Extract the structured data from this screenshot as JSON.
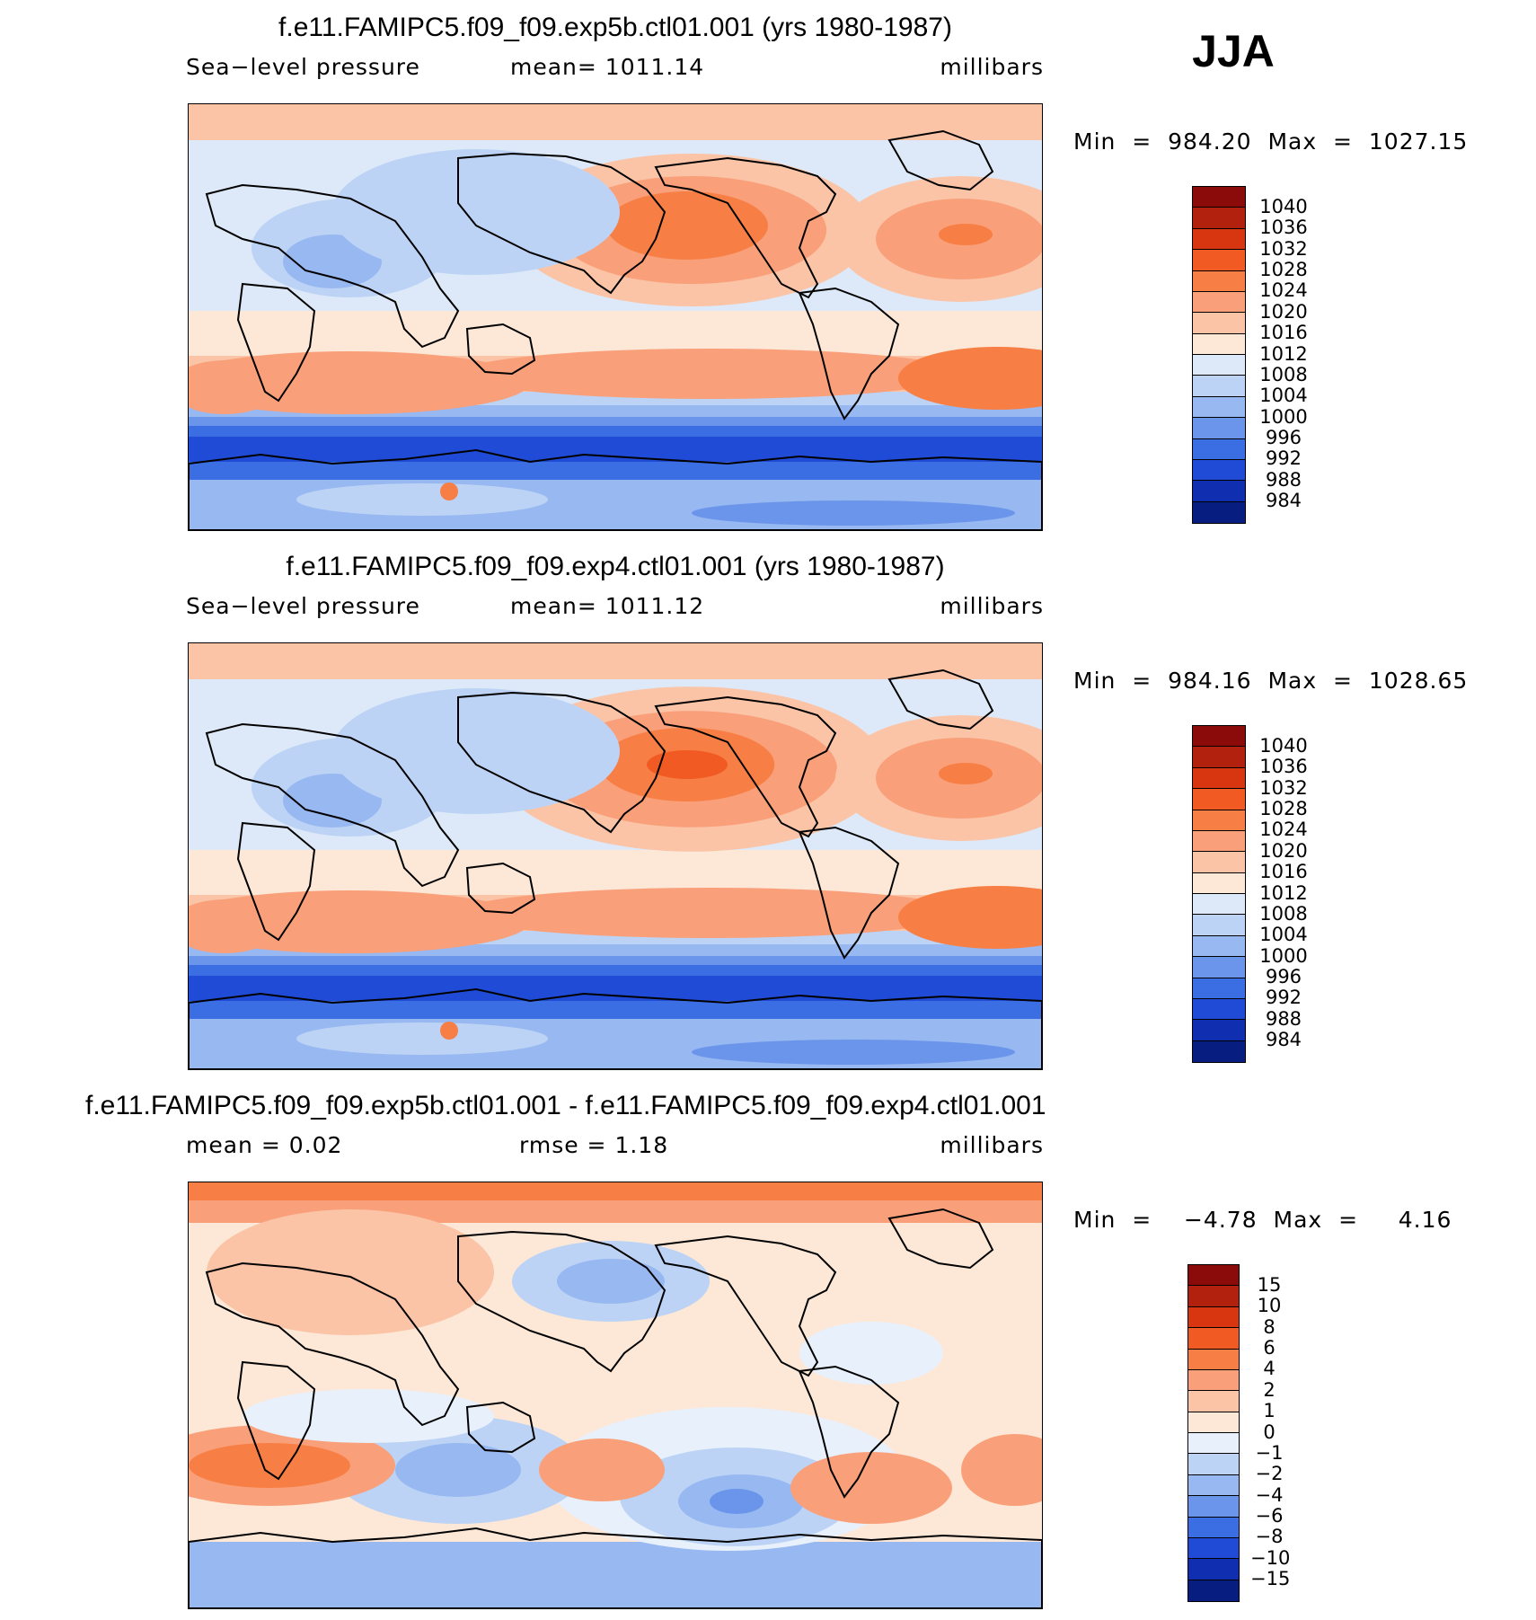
{
  "season": "JJA",
  "panels": [
    {
      "title": "f.e11.FAMIPC5.f09_f09.exp5b.ctl01.001 (yrs 1980-1987)",
      "field": "Sea−level pressure",
      "stat": "mean=  1011.14",
      "units": "millibars",
      "minmax": "Min  =  984.20  Max  =  1027.15"
    },
    {
      "title": "f.e11.FAMIPC5.f09_f09.exp4.ctl01.001 (yrs 1980-1987)",
      "field": "Sea−level pressure",
      "stat": "mean=  1011.12",
      "units": "millibars",
      "minmax": "Min  =  984.16  Max  =  1028.65"
    },
    {
      "title": "f.e11.FAMIPC5.f09_f09.exp5b.ctl01.001 - f.e11.FAMIPC5.f09_f09.exp4.ctl01.001",
      "field": "mean  =     0.02",
      "stat": "rmse  =     1.18",
      "units": "millibars",
      "minmax": "Min  =    −4.78  Max  =     4.16"
    }
  ],
  "chart_data": [
    {
      "type": "heatmap",
      "title": "f.e11.FAMIPC5.f09_f09.exp5b.ctl01.001 (yrs 1980-1987)",
      "variable": "Sea−level pressure",
      "units": "millibars",
      "mean": 1011.14,
      "min": 984.2,
      "max": 1027.15,
      "colorbar_levels": [
        "1040",
        "1036",
        "1032",
        "1028",
        "1024",
        "1020",
        "1016",
        "1012",
        "1008",
        "1004",
        "1000",
        "996",
        "992",
        "988",
        "984"
      ],
      "colorbar_colors": [
        "#8b0b0b",
        "#b2200e",
        "#d83511",
        "#f15a22",
        "#f77f45",
        "#f9a07a",
        "#fbc4a6",
        "#fde8d8",
        "#dde9f8",
        "#bcd3f5",
        "#97b8f1",
        "#6a95ea",
        "#3c6ee3",
        "#1f4bd6",
        "#0f2fb0",
        "#071d80"
      ]
    },
    {
      "type": "heatmap",
      "title": "f.e11.FAMIPC5.f09_f09.exp4.ctl01.001 (yrs 1980-1987)",
      "variable": "Sea−level pressure",
      "units": "millibars",
      "mean": 1011.12,
      "min": 984.16,
      "max": 1028.65,
      "colorbar_levels": [
        "1040",
        "1036",
        "1032",
        "1028",
        "1024",
        "1020",
        "1016",
        "1012",
        "1008",
        "1004",
        "1000",
        "996",
        "992",
        "988",
        "984"
      ],
      "colorbar_colors": [
        "#8b0b0b",
        "#b2200e",
        "#d83511",
        "#f15a22",
        "#f77f45",
        "#f9a07a",
        "#fbc4a6",
        "#fde8d8",
        "#dde9f8",
        "#bcd3f5",
        "#97b8f1",
        "#6a95ea",
        "#3c6ee3",
        "#1f4bd6",
        "#0f2fb0",
        "#071d80"
      ]
    },
    {
      "type": "heatmap",
      "title": "f.e11.FAMIPC5.f09_f09.exp5b.ctl01.001 - f.e11.FAMIPC5.f09_f09.exp4.ctl01.001",
      "units": "millibars",
      "mean": 0.02,
      "rmse": 1.18,
      "min": -4.78,
      "max": 4.16,
      "colorbar_levels": [
        "15",
        "10",
        "8",
        "6",
        "4",
        "2",
        "1",
        "0",
        "−1",
        "−2",
        "−4",
        "−6",
        "−8",
        "−10",
        "−15"
      ],
      "colorbar_colors": [
        "#8b0b0b",
        "#b2200e",
        "#d83511",
        "#f15a22",
        "#f77f45",
        "#f9a07a",
        "#fbc4a6",
        "#fde8d8",
        "#e8f0fb",
        "#bcd3f5",
        "#97b8f1",
        "#6a95ea",
        "#3c6ee3",
        "#1f4bd6",
        "#0f2fb0",
        "#071d80"
      ]
    }
  ]
}
